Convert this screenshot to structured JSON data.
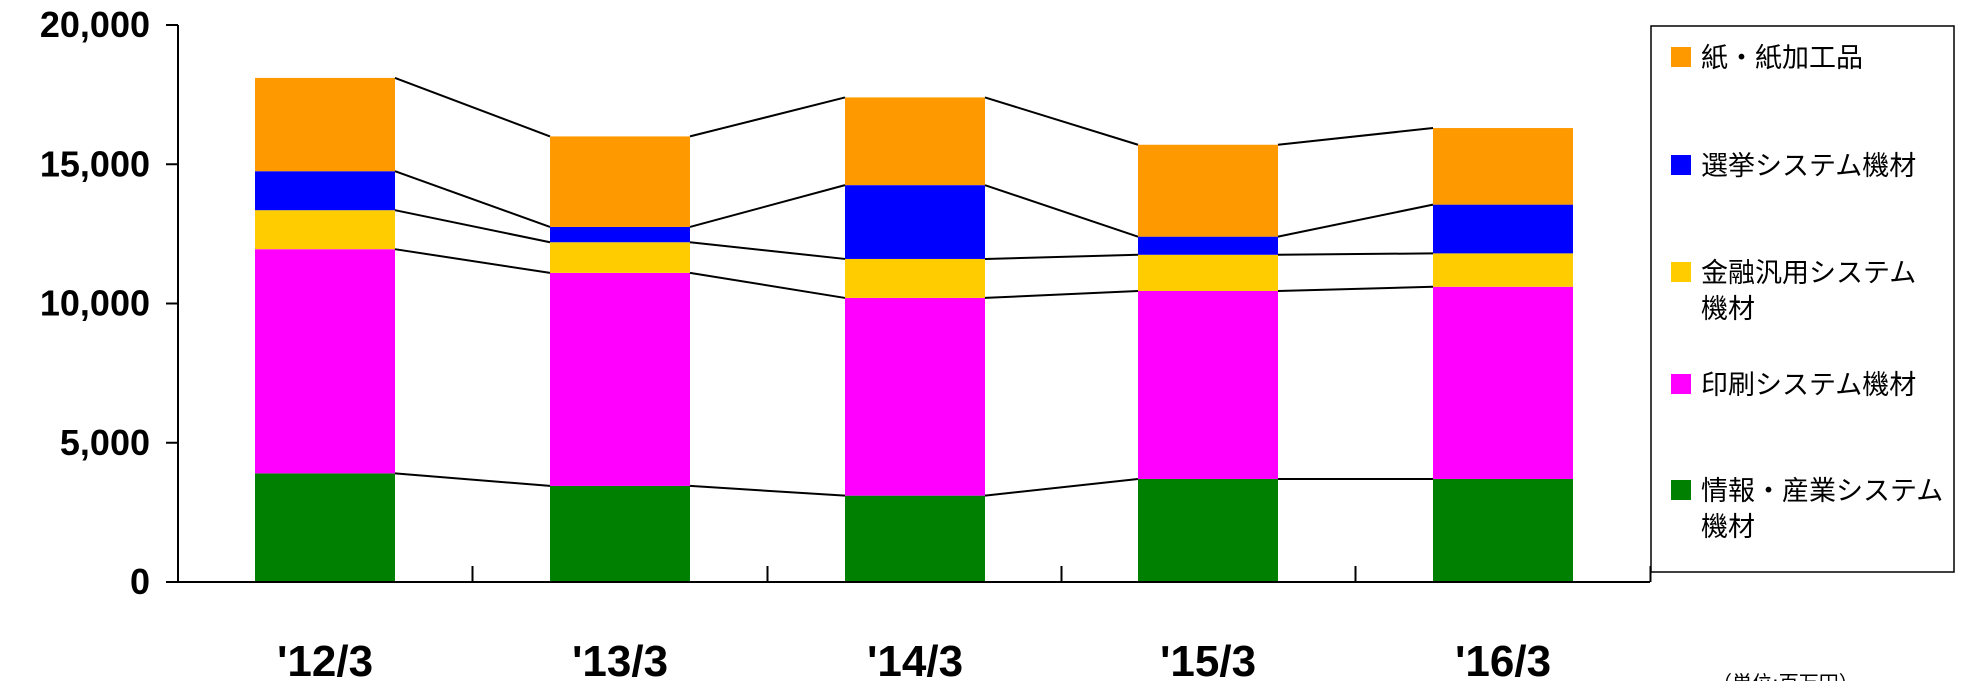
{
  "chart_data": {
    "type": "bar",
    "stacked": true,
    "categories": [
      "'12/3",
      "'13/3",
      "'14/3",
      "'15/3",
      "'16/3"
    ],
    "series": [
      {
        "name": "情報・産業システム機材",
        "legend_lines": [
          "情報・産業システム",
          "機材"
        ],
        "color": "#008000",
        "values": [
          3900,
          3450,
          3100,
          3700,
          3700
        ]
      },
      {
        "name": "印刷システム機材",
        "legend_lines": [
          "印刷システム機材"
        ],
        "color": "#FF00FF",
        "values": [
          8050,
          7650,
          7100,
          6750,
          6900
        ]
      },
      {
        "name": "金融汎用システム機材",
        "legend_lines": [
          "金融汎用システム",
          "機材"
        ],
        "color": "#FFCC00",
        "values": [
          1400,
          1100,
          1400,
          1300,
          1200
        ]
      },
      {
        "name": "選挙システム機材",
        "legend_lines": [
          "選挙システム機材"
        ],
        "color": "#0000FF",
        "values": [
          1400,
          550,
          2650,
          650,
          1750
        ]
      },
      {
        "name": "紙・紙加工品",
        "legend_lines": [
          "紙・紙加工品"
        ],
        "color": "#FF9900",
        "values": [
          3350,
          3250,
          3150,
          3300,
          2750
        ]
      }
    ],
    "ylim": [
      0,
      20000
    ],
    "yticks": [
      0,
      5000,
      10000,
      15000,
      20000
    ],
    "ytick_labels": [
      "0",
      "5,000",
      "10,000",
      "15,000",
      "20,000"
    ],
    "connector_lines": true,
    "legend_position": "right",
    "unit_note": "（単位:百万円）"
  }
}
